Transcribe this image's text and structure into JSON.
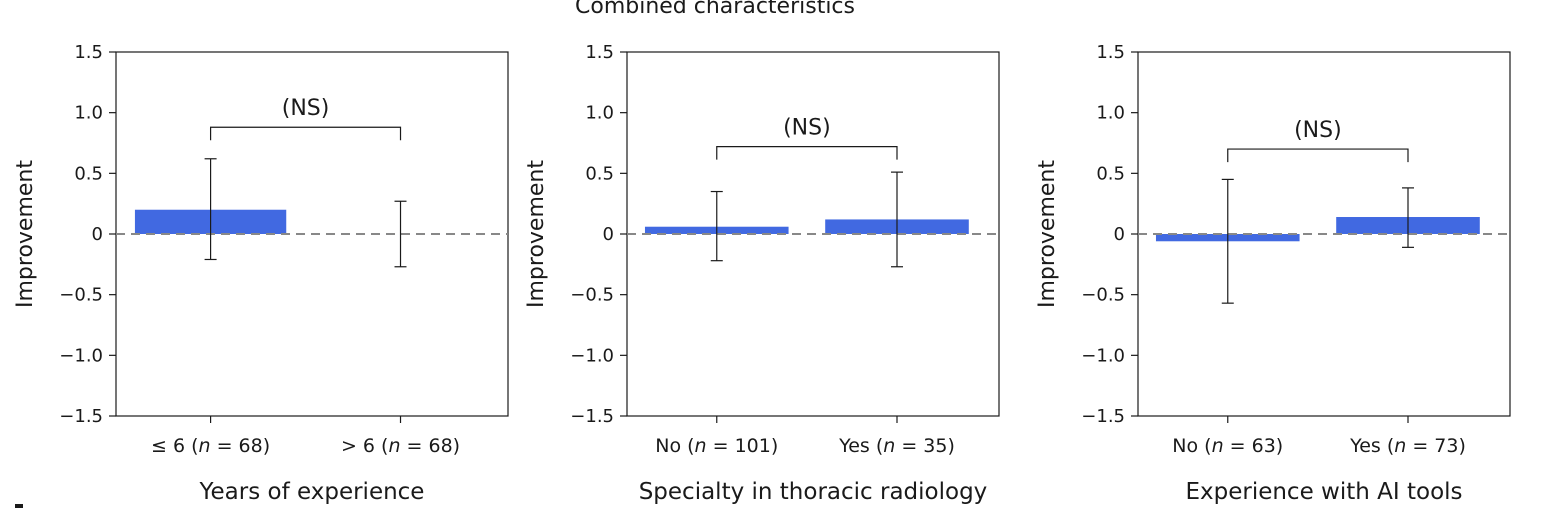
{
  "suptitle": "Combined characteristics",
  "colors": {
    "bar": "#4169e1",
    "axis": "#1a1a1a",
    "zero_line": "#888888"
  },
  "chart_data": [
    {
      "type": "bar",
      "xlabel": "Years of experience",
      "ylabel": "Improvement",
      "ylim": [
        -1.5,
        1.5
      ],
      "yticks": [
        "1.5",
        "1.0",
        "0.5",
        "0",
        "−0.5",
        "−1.0",
        "−1.5"
      ],
      "categories": [
        {
          "prefix": "≤ 6 (",
          "n_label": "n",
          "suffix": " = 68)"
        },
        {
          "prefix": "> 6 (",
          "n_label": "n",
          "suffix": " = 68)"
        }
      ],
      "values": [
        0.2,
        0.0
      ],
      "err_low": [
        -0.21,
        -0.27
      ],
      "err_high": [
        0.62,
        0.27
      ],
      "significance": {
        "label": "(NS)",
        "level": 0.88
      }
    },
    {
      "type": "bar",
      "xlabel": "Specialty in thoracic radiology",
      "ylabel": "Improvement",
      "ylim": [
        -1.5,
        1.5
      ],
      "yticks": [
        "1.5",
        "1.0",
        "0.5",
        "0",
        "−0.5",
        "−1.0",
        "−1.5"
      ],
      "categories": [
        {
          "prefix": "No (",
          "n_label": "n",
          "suffix": " = 101)"
        },
        {
          "prefix": "Yes (",
          "n_label": "n",
          "suffix": " = 35)"
        }
      ],
      "values": [
        0.06,
        0.12
      ],
      "err_low": [
        -0.22,
        -0.27
      ],
      "err_high": [
        0.35,
        0.51
      ],
      "significance": {
        "label": "(NS)",
        "level": 0.72
      }
    },
    {
      "type": "bar",
      "xlabel": "Experience with AI tools",
      "ylabel": "Improvement",
      "ylim": [
        -1.5,
        1.5
      ],
      "yticks": [
        "1.5",
        "1.0",
        "0.5",
        "0",
        "−0.5",
        "−1.0",
        "−1.5"
      ],
      "categories": [
        {
          "prefix": "No (",
          "n_label": "n",
          "suffix": " = 63)"
        },
        {
          "prefix": "Yes (",
          "n_label": "n",
          "suffix": " = 73)"
        }
      ],
      "values": [
        -0.06,
        0.14
      ],
      "err_low": [
        -0.57,
        -0.11
      ],
      "err_high": [
        0.45,
        0.38
      ],
      "significance": {
        "label": "(NS)",
        "level": 0.7
      }
    }
  ]
}
